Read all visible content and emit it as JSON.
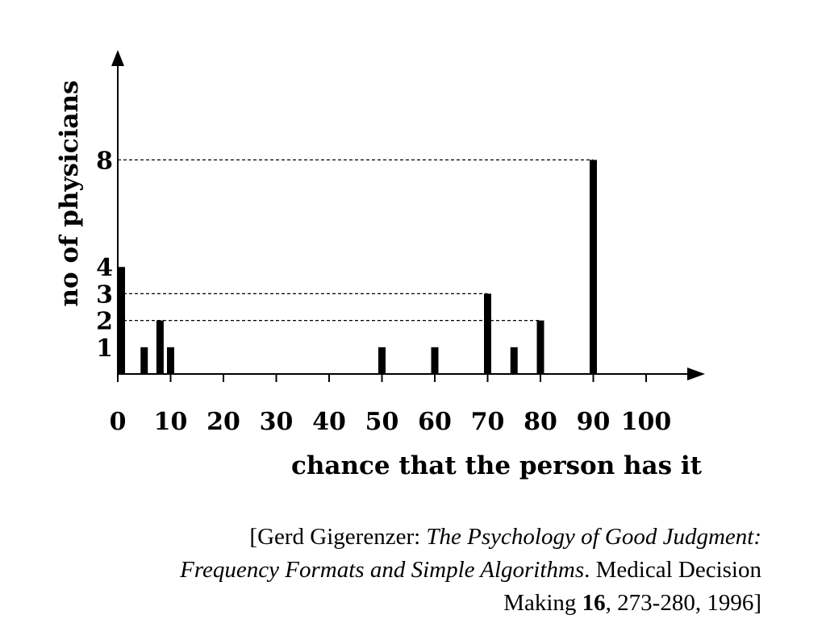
{
  "chart_data": {
    "type": "bar",
    "xlabel": "chance that the person has it",
    "ylabel": "no of physicians",
    "xlim": [
      0,
      110
    ],
    "ylim": [
      0,
      11
    ],
    "x_ticks": [
      0,
      10,
      20,
      30,
      40,
      50,
      60,
      70,
      80,
      90,
      100
    ],
    "x_tick_labels": [
      "0",
      "10",
      "20",
      "30",
      "40",
      "50",
      "60",
      "70",
      "80",
      "90",
      "100"
    ],
    "y_ticks": [
      1,
      2,
      3,
      4,
      8
    ],
    "y_tick_labels": [
      "1",
      "2",
      "3",
      "4",
      "8"
    ],
    "x": [
      0,
      5,
      8,
      10,
      50,
      60,
      70,
      75,
      80,
      90
    ],
    "values": [
      4,
      1,
      2,
      1,
      1,
      1,
      3,
      1,
      2,
      8
    ],
    "reference_lines": [
      8,
      3,
      2
    ],
    "bar_color": "#000000"
  },
  "citation": {
    "open": "[Gerd Gigerenzer: ",
    "title": "The Psychology of Good Judgment: Frequency Formats and Simple Algorithms",
    "middle": ". Medical Decision Making ",
    "volume": "16",
    "close": ", 273-280, 1996]"
  }
}
